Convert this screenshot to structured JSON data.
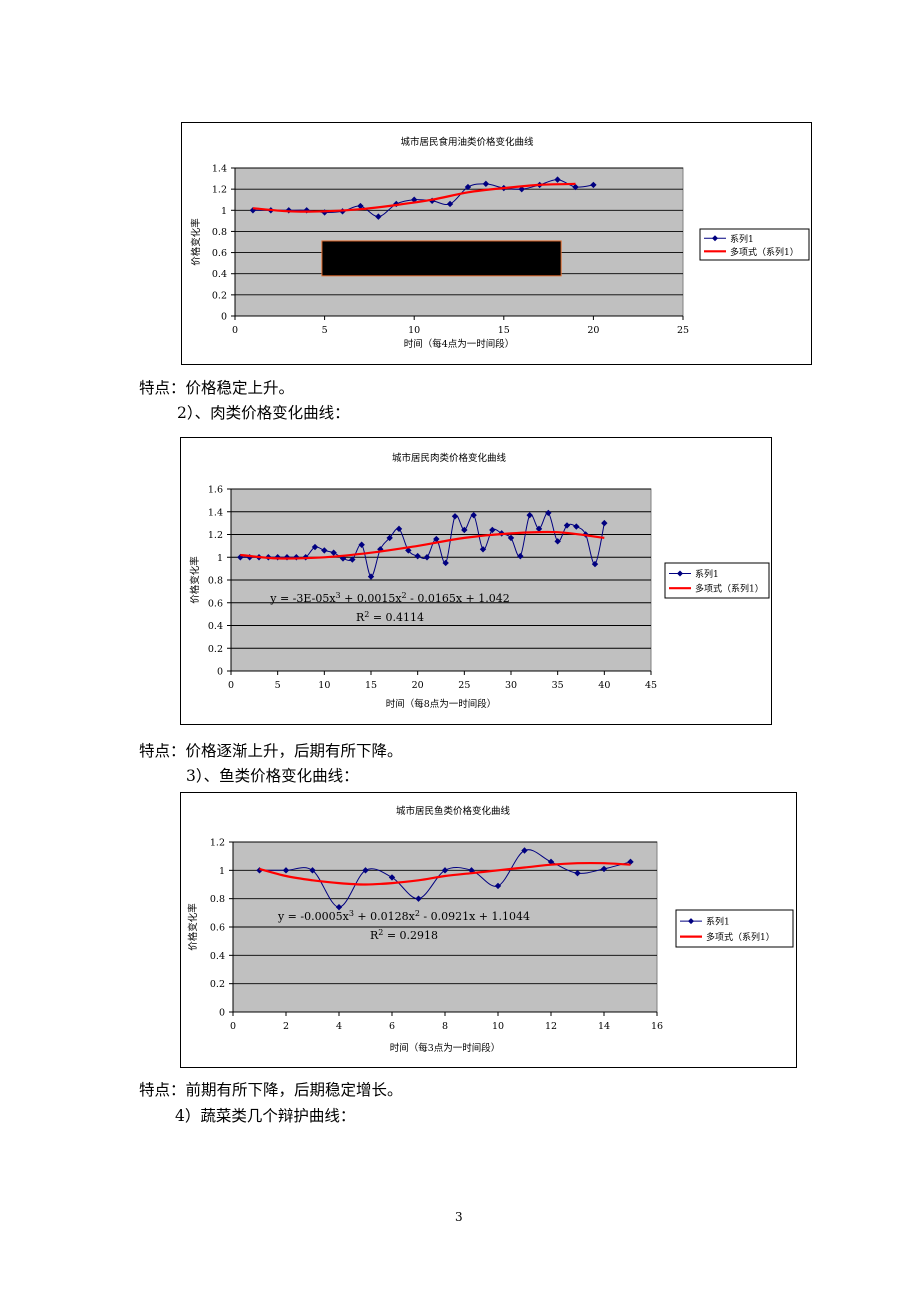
{
  "page": {
    "paragraphs": [
      "特点：价格稳定上升。",
      "2）、肉类价格变化曲线：",
      "特点：价格逐渐上升，后期有所下降。",
      "3）、鱼类价格变化曲线：",
      "特点：前期有所下降，后期稳定增长。",
      "4）蔬菜类几个辩护曲线："
    ],
    "page_number": "3"
  },
  "colors": {
    "series": "#000080",
    "trend": "#ff0000",
    "plot_bg": "#c0c0c0",
    "grid": "#000000"
  },
  "chart_data": [
    {
      "type": "line",
      "title": "城市居民食用油类价格变化曲线",
      "xlabel": "时间（每4点为一时间段）",
      "ylabel": "价格变化率",
      "xlim": [
        0,
        25
      ],
      "xticks": [
        0,
        5,
        10,
        15,
        20,
        25
      ],
      "ylim": [
        0,
        1.4
      ],
      "yticks": [
        0,
        0.2,
        0.4,
        0.6,
        0.8,
        1,
        1.2,
        1.4
      ],
      "ytick_labels": [
        "0",
        "0.2",
        "0.4",
        "0.6",
        "0.8",
        "1",
        "1.2",
        "1.4"
      ],
      "grid": true,
      "legend": "right",
      "series": [
        {
          "name": "系列1",
          "x": [
            1,
            2,
            3,
            4,
            5,
            6,
            7,
            8,
            9,
            10,
            11,
            12,
            13,
            14,
            15,
            16,
            17,
            18,
            19,
            20
          ],
          "values": [
            1.0,
            1.0,
            1.0,
            1.0,
            0.98,
            0.99,
            1.04,
            0.94,
            1.06,
            1.1,
            1.09,
            1.06,
            1.22,
            1.25,
            1.21,
            1.2,
            1.24,
            1.29,
            1.22,
            1.24
          ]
        },
        {
          "name": "多项式（系列1）",
          "kind": "trend",
          "x": [
            1,
            3,
            5,
            7,
            9,
            11,
            13,
            15,
            17,
            19
          ],
          "values": [
            1.02,
            0.99,
            0.99,
            1.01,
            1.05,
            1.1,
            1.17,
            1.21,
            1.24,
            1.25
          ]
        }
      ],
      "redaction_box": true
    },
    {
      "type": "line",
      "title": "城市居民肉类价格变化曲线",
      "xlabel": "时间（每8点为一时间段）",
      "ylabel": "价格变化率",
      "xlim": [
        0,
        45
      ],
      "xticks": [
        0,
        5,
        10,
        15,
        20,
        25,
        30,
        35,
        40,
        45
      ],
      "ylim": [
        0,
        1.6
      ],
      "yticks": [
        0,
        0.2,
        0.4,
        0.6,
        0.8,
        1,
        1.2,
        1.4,
        1.6
      ],
      "ytick_labels": [
        "0",
        "0.2",
        "0.4",
        "0.6",
        "0.8",
        "1",
        "1.2",
        "1.4",
        "1.6"
      ],
      "grid": true,
      "legend": "right",
      "series": [
        {
          "name": "系列1",
          "x": [
            1,
            2,
            3,
            4,
            5,
            6,
            7,
            8,
            9,
            10,
            11,
            12,
            13,
            14,
            15,
            16,
            17,
            18,
            19,
            20,
            21,
            22,
            23,
            24,
            25,
            26,
            27,
            28,
            29,
            30,
            31,
            32,
            33,
            34,
            35,
            36,
            37,
            38,
            39,
            40
          ],
          "values": [
            1.0,
            1.0,
            1.0,
            1.0,
            1.0,
            1.0,
            1.0,
            1.0,
            1.09,
            1.06,
            1.04,
            0.99,
            0.98,
            1.11,
            0.83,
            1.07,
            1.17,
            1.25,
            1.06,
            1.01,
            1.0,
            1.16,
            0.95,
            1.36,
            1.24,
            1.37,
            1.07,
            1.24,
            1.21,
            1.17,
            1.01,
            1.37,
            1.25,
            1.39,
            1.14,
            1.28,
            1.27,
            1.2,
            0.94,
            1.3
          ]
        },
        {
          "name": "多项式（系列1）",
          "kind": "trend",
          "x": [
            1,
            5,
            10,
            15,
            20,
            25,
            30,
            35,
            40
          ],
          "values": [
            1.02,
            0.99,
            1.0,
            1.04,
            1.1,
            1.17,
            1.21,
            1.22,
            1.17
          ]
        }
      ],
      "equation_line1": "y = -3E-05x³ + 0.0015x² - 0.0165x + 1.042",
      "equation_line2": "R² = 0.4114"
    },
    {
      "type": "line",
      "title": "城市居民鱼类价格变化曲线",
      "xlabel": "时间（每3点为一时间段）",
      "ylabel": "价格变化率",
      "xlim": [
        0,
        16
      ],
      "xticks": [
        0,
        2,
        4,
        6,
        8,
        10,
        12,
        14,
        16
      ],
      "ylim": [
        0,
        1.2
      ],
      "yticks": [
        0,
        0.2,
        0.4,
        0.6,
        0.8,
        1,
        1.2
      ],
      "ytick_labels": [
        "0",
        "0.2",
        "0.4",
        "0.6",
        "0.8",
        "1",
        "1.2"
      ],
      "grid": true,
      "legend": "right",
      "series": [
        {
          "name": "系列1",
          "x": [
            1,
            2,
            3,
            4,
            5,
            6,
            7,
            8,
            9,
            10,
            11,
            12,
            13,
            14,
            15
          ],
          "values": [
            1.0,
            1.0,
            1.0,
            0.74,
            1.0,
            0.95,
            0.8,
            1.0,
            1.0,
            0.89,
            1.14,
            1.06,
            0.98,
            1.01,
            1.06
          ]
        },
        {
          "name": "多项式（系列1）",
          "kind": "trend",
          "x": [
            1,
            2,
            3,
            4,
            5,
            6,
            7,
            8,
            9,
            10,
            11,
            12,
            13,
            14,
            15
          ],
          "values": [
            1.01,
            0.96,
            0.93,
            0.91,
            0.9,
            0.91,
            0.93,
            0.96,
            0.98,
            1.0,
            1.02,
            1.04,
            1.05,
            1.05,
            1.04
          ]
        }
      ],
      "equation_line1": "y = -0.0005x³ + 0.0128x² - 0.0921x + 1.1044",
      "equation_line2": "R² = 0.2918"
    }
  ]
}
